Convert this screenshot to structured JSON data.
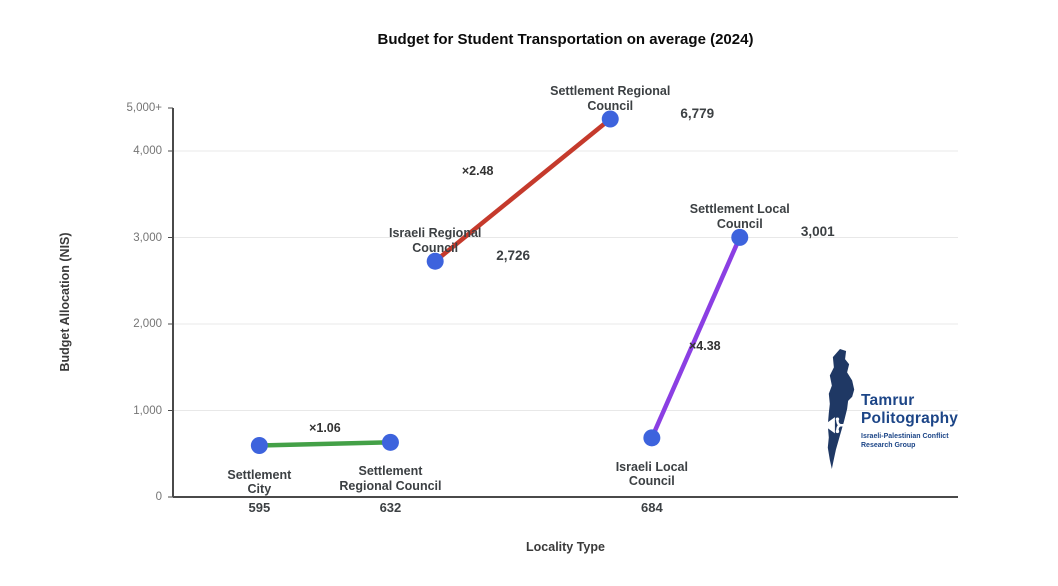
{
  "chart_data": {
    "type": "scatter",
    "title": "Budget for Student Transportation on average (2024)",
    "xlabel": "Locality Type",
    "ylabel": "Budget Allocation (NIS)",
    "ylim": [
      0,
      5000
    ],
    "grid": true,
    "legend": "none",
    "point_color": "#3d63dd",
    "y_ticks": [
      {
        "value": 0,
        "label": "0"
      },
      {
        "value": 1000,
        "label": "1,000"
      },
      {
        "value": 2000,
        "label": "2,000"
      },
      {
        "value": 3000,
        "label": "3,000"
      },
      {
        "value": 4000,
        "label": "4,000"
      },
      {
        "value": 5000,
        "label": "5,000+"
      }
    ],
    "series": [
      {
        "name": "settlement-city-vs-settlement-regional-council",
        "color": "#43a047",
        "multiplier": "×1.06",
        "multiplier_offset": [
          0,
          -16
        ],
        "points": [
          {
            "label": "Settlement\nCity",
            "value": 595,
            "value_label": "595",
            "x_frac": 0.11,
            "label_pos": "below",
            "value_pos": "axis"
          },
          {
            "label": "Settlement\nRegional Council",
            "value": 632,
            "value_label": "632",
            "x_frac": 0.277,
            "label_pos": "below",
            "value_pos": "axis"
          }
        ]
      },
      {
        "name": "israeli-regional-council-vs-settlement-regional-council",
        "color": "#c53a2c",
        "multiplier": "×2.48",
        "multiplier_offset": [
          -45,
          -19
        ],
        "points": [
          {
            "label": "Israeli Regional\nCouncil",
            "value": 2726,
            "value_label": "2,726",
            "x_frac": 0.334,
            "label_pos": "above",
            "value_pos": "right",
            "value_dx": 78
          },
          {
            "label": "Settlement Regional\nCouncil",
            "value": 6779,
            "value_label": "6,779",
            "x_frac": 0.557,
            "label_pos": "above",
            "value_pos": "right",
            "value_dx": 87
          }
        ]
      },
      {
        "name": "israeli-local-council-vs-settlement-local-council",
        "color": "#8b3fe3",
        "multiplier": "×4.38",
        "multiplier_offset": [
          9,
          8
        ],
        "points": [
          {
            "label": "Israeli Local\nCouncil",
            "value": 684,
            "value_label": "684",
            "x_frac": 0.61,
            "label_pos": "below",
            "value_pos": "axis"
          },
          {
            "label": "Settlement Local\nCouncil",
            "value": 3001,
            "value_label": "3,001",
            "x_frac": 0.722,
            "label_pos": "above",
            "value_pos": "right",
            "value_dx": 78
          }
        ]
      }
    ]
  },
  "logo": {
    "line1": "Tamrur",
    "line2": "Politography",
    "line3": "Israeli-Palestinian Conflict",
    "line4": "Research Group",
    "map_color": "#1f3864",
    "text_color": "#1c4587"
  }
}
